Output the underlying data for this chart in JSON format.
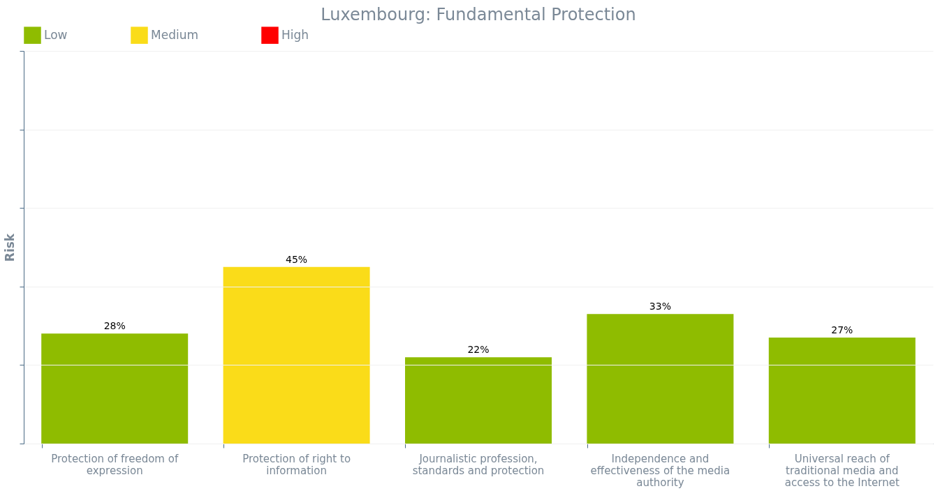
{
  "chart_data": {
    "type": "bar",
    "title": "Luxembourg: Fundamental Protection",
    "ylabel": "Risk",
    "categories": [
      "Protection of freedom of expression",
      "Protection of right to information",
      "Journalistic profession, standards and protection",
      "Independence and effectiveness of the media authority",
      "Universal reach of traditional media and access to the Internet"
    ],
    "series": [
      {
        "name": "Low",
        "color": "#8fbc00",
        "values": [
          28,
          null,
          22,
          33,
          27
        ],
        "value_labels": [
          "28%",
          null,
          "22%",
          "33%",
          "27%"
        ]
      },
      {
        "name": "Medium",
        "color": "#fadc19",
        "values": [
          null,
          45,
          null,
          null,
          null
        ],
        "value_labels": [
          null,
          "45%",
          null,
          null,
          null
        ]
      },
      {
        "name": "High",
        "color": "#ff0000",
        "values": [
          null,
          null,
          null,
          null,
          null
        ],
        "value_labels": [
          null,
          null,
          null,
          null,
          null
        ]
      }
    ],
    "ylim": [
      0,
      100
    ],
    "yticks": [
      {
        "value": 0,
        "label": null
      },
      {
        "value": 20,
        "label": null
      },
      {
        "value": 40,
        "label": null
      },
      {
        "value": 60,
        "label": null
      },
      {
        "value": 80,
        "label": null
      },
      {
        "value": 100,
        "label": null
      }
    ],
    "tick_labels": "x",
    "grid": "y",
    "legend": "top left"
  }
}
